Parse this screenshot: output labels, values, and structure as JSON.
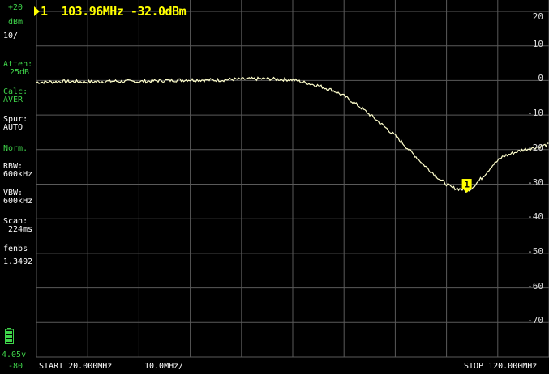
{
  "marker": {
    "index": "1",
    "frequency": "103.96MHz",
    "level": "-32.0dBm"
  },
  "left_panel": {
    "ref_level": "+20",
    "unit": "dBm",
    "scale": "10/",
    "atten_label": "Atten:",
    "atten_value": "25dB",
    "calc_label": "Calc:",
    "calc_value": "AVER",
    "spur_label": "Spur:",
    "spur_value": "AUTO",
    "mode": "Norm.",
    "rbw_label": "RBW:",
    "rbw_value": "600kHz",
    "vbw_label": "VBW:",
    "vbw_value": "600kHz",
    "scan_label": "Scan:",
    "scan_value": "224ms",
    "custom_label": "fenbs",
    "custom_value": "1.3492",
    "battery_voltage": "4.05v",
    "bottom_level": "-80"
  },
  "bottom": {
    "start": "START 20.000MHz",
    "div": "10.0MHz/",
    "stop": "STOP 120.000MHz"
  },
  "colors": {
    "grid": "#5a5a5a",
    "trace": "#ffffcc",
    "marker": "#ffff00",
    "label_green": "#3fd44a",
    "label_white": "#ffffff"
  },
  "chart_data": {
    "type": "line",
    "xlabel": "",
    "ylabel": "",
    "xlim": [
      20,
      120
    ],
    "ylim": [
      -80,
      20
    ],
    "y_ticks": [
      20,
      10,
      0,
      -10,
      -20,
      -30,
      -40,
      -50,
      -60,
      -70
    ],
    "y_tick_labels": [
      "20",
      "10",
      "0",
      "-10",
      "-20",
      "-30",
      "-40",
      "-50",
      "-60",
      "-70"
    ],
    "grid": true,
    "series": [
      {
        "x": [
          20,
          25,
          30,
          35,
          40,
          45,
          50,
          55,
          60,
          65,
          70,
          72,
          75,
          78,
          80,
          83,
          86,
          90,
          93,
          96,
          99,
          101,
          103,
          104,
          105,
          107,
          109,
          111,
          113,
          115,
          117,
          120
        ],
        "y": [
          -0.5,
          -0.3,
          -0.4,
          -0.2,
          -0.3,
          0,
          0.2,
          0.1,
          0.4,
          0.5,
          0.2,
          -0.5,
          -1.5,
          -3,
          -4.5,
          -7.5,
          -11,
          -16,
          -20.5,
          -25,
          -29,
          -31,
          -31.5,
          -32,
          -31,
          -28,
          -24.5,
          -22,
          -21,
          -20,
          -19.5,
          -18.5
        ]
      }
    ],
    "marker": {
      "x": 103.96,
      "y": -32.0,
      "label": "1"
    }
  }
}
